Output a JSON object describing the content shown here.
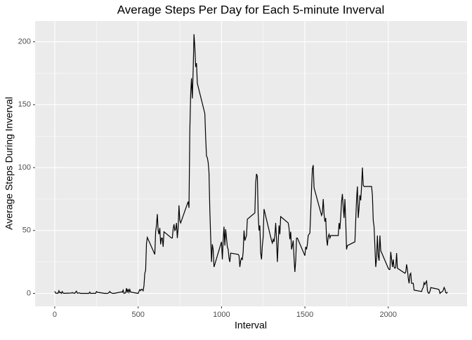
{
  "chart_data": {
    "type": "line",
    "title": "Average Steps Per Day for Each 5-minute Inverval",
    "x_label": "Interval",
    "y_label": "Average Steps During Inverval",
    "xlim": [
      -117.75,
      2472.75
    ],
    "ylim": [
      -10.3,
      216.5
    ],
    "xticks": [
      0,
      500,
      1000,
      1500,
      2000
    ],
    "yticks": [
      0,
      50,
      100,
      150,
      200
    ],
    "grid": true,
    "series": [
      {
        "color": "#000000",
        "x": [
          0,
          5,
          10,
          15,
          20,
          25,
          30,
          35,
          40,
          45,
          50,
          55,
          100,
          105,
          110,
          115,
          120,
          125,
          130,
          135,
          140,
          145,
          150,
          155,
          200,
          205,
          210,
          215,
          220,
          225,
          230,
          235,
          240,
          245,
          250,
          255,
          300,
          305,
          310,
          315,
          320,
          325,
          330,
          335,
          340,
          345,
          350,
          355,
          400,
          405,
          410,
          415,
          420,
          425,
          430,
          435,
          440,
          445,
          450,
          455,
          500,
          505,
          510,
          515,
          520,
          525,
          530,
          535,
          540,
          545,
          550,
          555,
          600,
          605,
          610,
          615,
          620,
          625,
          630,
          635,
          640,
          645,
          650,
          655,
          700,
          705,
          710,
          715,
          720,
          725,
          730,
          735,
          740,
          745,
          750,
          755,
          800,
          805,
          810,
          815,
          820,
          825,
          830,
          835,
          840,
          845,
          850,
          855,
          900,
          905,
          910,
          915,
          920,
          925,
          930,
          935,
          940,
          945,
          950,
          955,
          1000,
          1005,
          1010,
          1015,
          1020,
          1025,
          1030,
          1035,
          1040,
          1045,
          1050,
          1055,
          1100,
          1105,
          1110,
          1115,
          1120,
          1125,
          1130,
          1135,
          1140,
          1145,
          1150,
          1155,
          1200,
          1205,
          1210,
          1215,
          1220,
          1225,
          1230,
          1235,
          1240,
          1245,
          1250,
          1255,
          1300,
          1305,
          1310,
          1315,
          1320,
          1325,
          1330,
          1335,
          1340,
          1345,
          1350,
          1355,
          1400,
          1405,
          1410,
          1415,
          1420,
          1425,
          1430,
          1435,
          1440,
          1445,
          1450,
          1455,
          1500,
          1505,
          1510,
          1515,
          1520,
          1525,
          1530,
          1535,
          1540,
          1545,
          1550,
          1555,
          1600,
          1605,
          1610,
          1615,
          1620,
          1625,
          1630,
          1635,
          1640,
          1645,
          1650,
          1655,
          1700,
          1705,
          1710,
          1715,
          1720,
          1725,
          1730,
          1735,
          1740,
          1745,
          1750,
          1755,
          1800,
          1805,
          1810,
          1815,
          1820,
          1825,
          1830,
          1835,
          1840,
          1845,
          1850,
          1855,
          1900,
          1905,
          1910,
          1915,
          1920,
          1925,
          1930,
          1935,
          1940,
          1945,
          1950,
          1955,
          2000,
          2005,
          2010,
          2015,
          2020,
          2025,
          2030,
          2035,
          2040,
          2045,
          2050,
          2055,
          2100,
          2105,
          2110,
          2115,
          2120,
          2125,
          2130,
          2135,
          2140,
          2145,
          2150,
          2155,
          2200,
          2205,
          2210,
          2215,
          2220,
          2225,
          2230,
          2235,
          2240,
          2245,
          2250,
          2255,
          2300,
          2305,
          2310,
          2315,
          2320,
          2325,
          2330,
          2335,
          2340,
          2345,
          2350,
          2355
        ],
        "values": [
          1.7,
          0.3,
          0.1,
          0.2,
          0.1,
          2.1,
          0.5,
          0.9,
          0,
          1.5,
          0.3,
          0.1,
          0.3,
          0.7,
          0.2,
          0.3,
          0,
          1.1,
          1.8,
          0.2,
          0.2,
          0.4,
          0.3,
          0,
          0,
          0,
          1.1,
          0,
          0,
          0.1,
          0,
          0.2,
          0,
          0,
          1.5,
          0.9,
          0,
          0,
          0,
          0,
          0.2,
          0.6,
          1.6,
          0.6,
          0.5,
          0.1,
          0,
          0,
          1.2,
          0.9,
          2.6,
          0,
          0.3,
          0.4,
          4.1,
          0.7,
          3.5,
          0.8,
          3.1,
          1.1,
          0,
          1.6,
          3,
          2.2,
          3.3,
          3,
          2.1,
          6.1,
          16,
          18.3,
          39.5,
          44.5,
          31,
          49,
          54,
          63,
          50,
          47,
          52,
          39,
          44,
          44,
          37,
          49,
          44,
          44,
          51,
          55,
          50,
          51,
          56,
          44,
          52,
          70,
          58,
          56,
          73,
          68,
          129,
          158,
          171,
          155,
          177,
          206,
          196,
          180,
          183,
          167,
          143,
          124,
          109,
          108,
          104,
          96,
          66,
          45,
          25,
          39,
          35,
          21,
          41,
          27,
          42,
          53,
          38,
          51,
          44,
          37,
          35,
          28,
          25,
          32,
          31,
          30,
          21,
          26,
          28,
          27,
          33,
          50,
          42,
          44,
          46,
          59,
          64,
          88,
          95,
          93,
          63,
          50,
          54,
          32,
          27,
          38,
          45,
          67,
          42,
          40,
          43,
          41,
          46,
          56,
          43,
          25,
          40,
          54,
          47,
          61,
          56,
          52,
          43,
          49,
          35,
          38,
          42,
          28,
          17,
          26,
          44,
          44,
          30,
          37,
          35,
          39,
          46,
          47,
          48,
          65,
          83,
          99,
          102,
          84,
          62,
          64,
          75,
          63,
          57,
          60,
          44,
          38,
          45,
          47,
          44,
          46,
          46,
          56,
          51,
          61,
          73,
          79,
          69,
          60,
          75,
          57,
          35,
          38,
          41,
          58,
          75,
          85,
          60,
          68,
          78,
          74,
          85,
          100,
          86,
          85,
          85,
          78,
          58,
          53,
          37,
          21,
          28,
          46,
          30,
          26,
          46,
          34,
          20,
          19,
          19,
          33,
          27,
          21,
          27,
          21,
          20,
          21,
          32,
          20,
          16,
          17,
          23,
          19,
          12,
          8,
          15,
          16,
          8,
          8,
          8,
          2.6,
          1.5,
          3.7,
          4.8,
          8.5,
          7.1,
          8.7,
          9.8,
          2.2,
          0.3,
          0.1,
          1.6,
          4.6,
          3.3,
          2.8,
          0,
          0.8,
          1,
          1.6,
          2.6,
          4.7,
          3.3,
          0.6,
          0.2,
          1.1
        ]
      }
    ]
  }
}
